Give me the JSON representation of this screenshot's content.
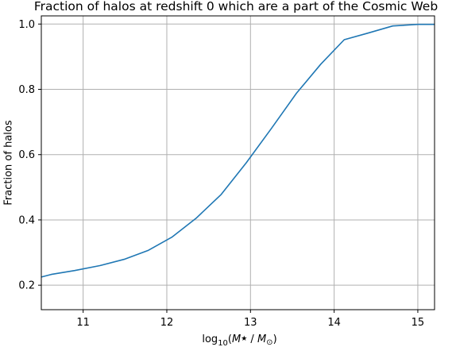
{
  "chart_data": {
    "type": "line",
    "title": "Fraction of halos at redshift 0 which are a part of the Cosmic Web",
    "xlabel": "log10(M* / M⊙)",
    "ylabel": "Fraction of halos",
    "xlim": [
      10.5,
      15.2
    ],
    "ylim": [
      0.125,
      1.025
    ],
    "grid": true,
    "x_ticks": [
      11,
      12,
      13,
      14,
      15
    ],
    "x_tick_labels": [
      "11",
      "12",
      "13",
      "14",
      "15"
    ],
    "y_ticks": [
      0.2,
      0.4,
      0.6,
      0.8,
      1.0
    ],
    "y_tick_labels": [
      "0.2",
      "0.4",
      "0.6",
      "0.8",
      "1.0"
    ],
    "series": [
      {
        "color": "#1f77b4",
        "x": [
          10.5,
          10.62,
          10.9,
          11.2,
          11.5,
          11.78,
          12.06,
          12.35,
          12.65,
          12.95,
          13.25,
          13.55,
          13.84,
          14.12,
          14.4,
          14.7,
          15.0,
          15.2
        ],
        "y": [
          0.225,
          0.233,
          0.245,
          0.26,
          0.28,
          0.307,
          0.347,
          0.405,
          0.478,
          0.575,
          0.68,
          0.788,
          0.877,
          0.952,
          0.972,
          0.994,
          0.999,
          0.999
        ]
      }
    ]
  }
}
